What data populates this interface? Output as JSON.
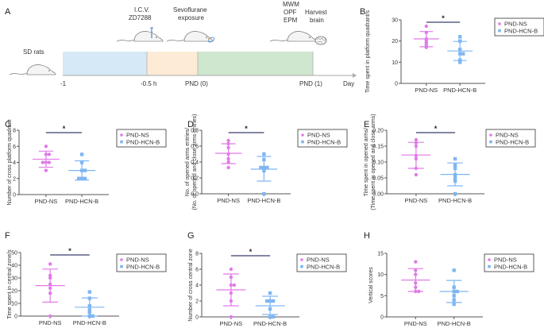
{
  "timeline": {
    "panel_label": "A",
    "start_label": "SD rats",
    "events": [
      {
        "label_lines": [
          "I.C.V.",
          "ZD7288"
        ]
      },
      {
        "label_lines": [
          "Sevoflurane",
          "exposure"
        ]
      },
      {
        "label_lines": [
          "MWM",
          "OPF",
          "EPM"
        ]
      },
      {
        "label_lines": [
          "Harvest",
          "brain"
        ]
      }
    ],
    "ticks": [
      "-1",
      "-0.5 h",
      "PND (0)",
      "PND (1)",
      "Day"
    ],
    "segment_colors": [
      "#d5e9f6",
      "#fdebd6",
      "#cfe6cf"
    ]
  },
  "colors": {
    "ns": "#e07be8",
    "hcn": "#7fb6f2",
    "sig_bar": "#3a3f6e",
    "axis": "#555555"
  },
  "chart_data": [
    {
      "panel": "B",
      "type": "scatter",
      "ylabel": [
        "Time  spent in platform quadrant/s"
      ],
      "ylim": [
        0,
        30
      ],
      "yticks": [
        "0",
        "10",
        "20",
        "30"
      ],
      "categories": [
        "PND-NS",
        "PND-HCN-B"
      ],
      "series": [
        {
          "name": "PND-NS",
          "values": [
            27,
            24,
            21,
            20,
            19,
            18,
            17
          ],
          "mean": 21,
          "sd_low": 17.3,
          "sd_high": 24.5
        },
        {
          "name": "PND-HCN-B",
          "values": [
            22,
            20,
            16,
            14,
            14,
            11,
            10
          ],
          "mean": 15.3,
          "sd_low": 10.8,
          "sd_high": 19.8
        }
      ],
      "significance": "*",
      "legend": [
        "PND-NS",
        "PND-HCN-B"
      ],
      "legend_position": "right"
    },
    {
      "panel": "C",
      "type": "scatter",
      "ylabel": [
        "Number of cross platform quadrant"
      ],
      "ylim": [
        0,
        8
      ],
      "yticks": [
        "0",
        "2",
        "4",
        "6",
        "8"
      ],
      "categories": [
        "PND-NS",
        "PND-HCN-B"
      ],
      "series": [
        {
          "name": "PND-NS",
          "values": [
            6,
            5,
            5,
            4,
            4,
            4,
            3
          ],
          "mean": 4.4,
          "sd_low": 3.4,
          "sd_high": 5.4
        },
        {
          "name": "PND-HCN-B",
          "values": [
            5,
            4,
            3,
            3,
            2,
            2,
            2
          ],
          "mean": 3.0,
          "sd_low": 1.8,
          "sd_high": 4.2
        },
        {
          "name": "_",
          "values": []
        }
      ],
      "significance": "*",
      "legend": [
        "PND-NS",
        "PND-HCN-B"
      ],
      "legend_position": "right"
    },
    {
      "panel": "D",
      "type": "scatter",
      "ylabel": [
        "No. of opened arms entries/",
        "(No. of opened and close arms entries)"
      ],
      "ylim": [
        0,
        0.8
      ],
      "yticks": [
        "0.0",
        "0.2",
        "0.4",
        "0.6",
        "0.8"
      ],
      "categories": [
        "PND-NS",
        "PND-HCN-B"
      ],
      "series": [
        {
          "name": "PND-NS",
          "values": [
            0.67,
            0.63,
            0.58,
            0.5,
            0.44,
            0.4,
            0.33
          ],
          "mean": 0.51,
          "sd_low": 0.38,
          "sd_high": 0.63
        },
        {
          "name": "PND-HCN-B",
          "values": [
            0.5,
            0.43,
            0.33,
            0.33,
            0.33,
            0.29,
            0.0
          ],
          "mean": 0.31,
          "sd_low": 0.16,
          "sd_high": 0.47
        }
      ],
      "significance": "*",
      "legend": [
        "PND-NS",
        "PND-HCN-B"
      ],
      "legend_position": "right"
    },
    {
      "panel": "E",
      "type": "scatter",
      "ylabel": [
        "Time spent in opened arms/",
        "(Time spent in opened  and close arms)"
      ],
      "ylim": [
        0,
        0.2
      ],
      "yticks": [
        "0.00",
        "0.05",
        "0.10",
        "0.15",
        "0.20"
      ],
      "categories": [
        "PND-NS",
        "PND-HCN-B"
      ],
      "series": [
        {
          "name": "PND-NS",
          "values": [
            0.17,
            0.16,
            0.15,
            0.12,
            0.11,
            0.08,
            0.06
          ],
          "mean": 0.122,
          "sd_low": 0.08,
          "sd_high": 0.162
        },
        {
          "name": "PND-HCN-B",
          "values": [
            0.11,
            0.09,
            0.08,
            0.06,
            0.05,
            0.04,
            0.0
          ],
          "mean": 0.061,
          "sd_low": 0.025,
          "sd_high": 0.097
        }
      ],
      "significance": "*",
      "legend": [
        "PND-NS",
        "PND-HCN-B"
      ],
      "legend_position": "right"
    },
    {
      "panel": "F",
      "type": "scatter",
      "ylabel": [
        "Time spent in central zone/s"
      ],
      "ylim": [
        0,
        50
      ],
      "yticks": [
        "0",
        "10",
        "20",
        "30",
        "40",
        "50"
      ],
      "categories": [
        "PND-NS",
        "PND-HCN-B"
      ],
      "series": [
        {
          "name": "PND-NS",
          "values": [
            41,
            32,
            30,
            25,
            22,
            18,
            0
          ],
          "mean": 24,
          "sd_low": 11,
          "sd_high": 37
        },
        {
          "name": "PND-HCN-B",
          "values": [
            19,
            14,
            8,
            5,
            3,
            0,
            0
          ],
          "mean": 7,
          "sd_low": 0,
          "sd_high": 14.3
        }
      ],
      "significance": "*",
      "legend": [
        "PND-NS",
        "PND-HCN-B"
      ],
      "legend_position": "right"
    },
    {
      "panel": "G",
      "type": "scatter",
      "ylabel": [
        "Number of cross central zone"
      ],
      "ylim": [
        0,
        8
      ],
      "yticks": [
        "0",
        "2",
        "4",
        "6",
        "8"
      ],
      "categories": [
        "PND-NS",
        "PND-HCN-B"
      ],
      "series": [
        {
          "name": "PND-NS",
          "values": [
            6,
            5,
            4,
            4,
            3,
            2,
            0
          ],
          "mean": 3.4,
          "sd_low": 1.4,
          "sd_high": 5.4
        },
        {
          "name": "PND-HCN-B",
          "values": [
            3,
            2,
            2,
            2,
            1,
            0,
            0
          ],
          "mean": 1.4,
          "sd_low": 0.3,
          "sd_high": 2.6
        }
      ],
      "significance": "*",
      "legend": [
        "PND-NS",
        "PND-HCN-B"
      ],
      "legend_position": "right"
    },
    {
      "panel": "H",
      "type": "scatter",
      "ylabel": [
        "Vertical scores"
      ],
      "ylim": [
        0,
        15
      ],
      "yticks": [
        "0",
        "5",
        "10",
        "15"
      ],
      "categories": [
        "PND-NS",
        "PND-HCN-B"
      ],
      "series": [
        {
          "name": "PND-NS",
          "values": [
            13,
            11,
            10,
            8,
            7,
            6,
            6
          ],
          "mean": 8.7,
          "sd_low": 6.0,
          "sd_high": 11.4
        },
        {
          "name": "PND-HCN-B",
          "values": [
            11,
            7,
            6,
            6,
            5,
            4,
            3
          ],
          "mean": 6.0,
          "sd_low": 3.4,
          "sd_high": 8.6
        }
      ],
      "significance": "",
      "legend": [
        "PND-NS",
        "PND-HCN-B"
      ],
      "legend_position": "right"
    }
  ]
}
